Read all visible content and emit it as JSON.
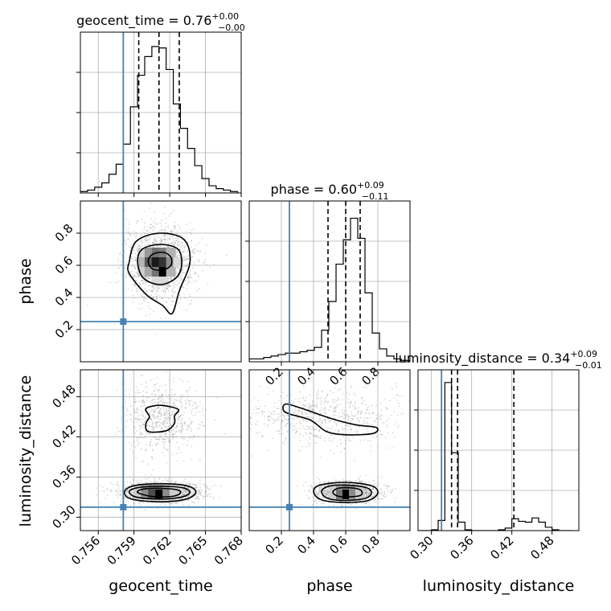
{
  "chart_data": {
    "type": "corner",
    "parameters": [
      "geocent_time",
      "phase",
      "luminosity_distance"
    ],
    "truths": {
      "geocent_time": 0.7581,
      "phase": 0.25,
      "luminosity_distance": 0.315
    },
    "panels": [
      {
        "id": "hist-geocent_time",
        "type": "histogram",
        "param": "geocent_time",
        "title": {
          "main": "geocent_time = 0.76",
          "sup": "+0.00",
          "sub": "−0.00"
        },
        "xlim": [
          0.7545,
          0.768
        ],
        "xticks": [
          0.756,
          0.759,
          0.762,
          0.765,
          0.768
        ],
        "quantiles": [
          0.7594,
          0.7611,
          0.7628
        ],
        "bin_edges": [
          0.7545,
          0.7551,
          0.7557,
          0.7563,
          0.7569,
          0.7575,
          0.7581,
          0.7587,
          0.7593,
          0.7599,
          0.7605,
          0.7611,
          0.7617,
          0.7623,
          0.7629,
          0.7635,
          0.7641,
          0.7647,
          0.7653,
          0.7659,
          0.7665,
          0.7671,
          0.7677
        ],
        "counts": [
          1,
          2,
          4,
          7,
          13,
          20,
          34,
          60,
          82,
          95,
          102,
          101,
          86,
          62,
          45,
          31,
          19,
          10,
          5,
          3,
          2,
          1
        ],
        "ymax": 112
      },
      {
        "id": "hist-phase",
        "type": "histogram",
        "param": "phase",
        "title": {
          "main": "phase = 0.60",
          "sup": "+0.09",
          "sub": "−0.11"
        },
        "xlim": [
          0.0,
          1.0
        ],
        "xticks": [
          0.2,
          0.4,
          0.6,
          0.8
        ],
        "xticklabels": [
          "0.2",
          "0.4",
          "0.6",
          "0.8"
        ],
        "quantiles": [
          0.49,
          0.6,
          0.69
        ],
        "bin_edges": [
          0.0,
          0.045,
          0.09,
          0.135,
          0.18,
          0.225,
          0.27,
          0.315,
          0.36,
          0.405,
          0.45,
          0.495,
          0.54,
          0.585,
          0.63,
          0.675,
          0.72,
          0.765,
          0.81,
          0.855,
          0.9,
          0.945,
          1.0
        ],
        "counts": [
          2,
          2,
          3,
          4,
          5,
          6,
          6,
          7,
          8,
          10,
          22,
          42,
          68,
          85,
          100,
          86,
          48,
          20,
          9,
          4,
          2,
          1
        ],
        "ymax": 112
      },
      {
        "id": "hist-luminosity_distance",
        "type": "histogram",
        "param": "luminosity_distance",
        "title": {
          "main": "luminosity_distance = 0.34",
          "sup": "+0.09",
          "sub": "−0.01"
        },
        "xlim": [
          0.28,
          0.52
        ],
        "xticks": [
          0.3,
          0.36,
          0.42,
          0.48
        ],
        "xticklabels": [
          "0.30",
          "0.36",
          "0.42",
          "0.48"
        ],
        "quantiles": [
          0.33,
          0.339,
          0.423
        ],
        "bin_edges": [
          0.28,
          0.29,
          0.3,
          0.31,
          0.32,
          0.33,
          0.34,
          0.35,
          0.36,
          0.37,
          0.38,
          0.39,
          0.4,
          0.41,
          0.42,
          0.43,
          0.44,
          0.45,
          0.46,
          0.47,
          0.48,
          0.49,
          0.5,
          0.51
        ],
        "counts": [
          0,
          0,
          1,
          12,
          175,
          92,
          10,
          1,
          0,
          0,
          0,
          0,
          1,
          3,
          14,
          11,
          10,
          15,
          10,
          4,
          1,
          0,
          0
        ],
        "ymax": 190
      },
      {
        "id": "density-geocent-phase",
        "type": "density2d",
        "x": "geocent_time",
        "y": "phase",
        "xlim": [
          0.7545,
          0.768
        ],
        "ylim": [
          0.0,
          1.0
        ],
        "yticks": [
          0.2,
          0.4,
          0.6,
          0.8
        ],
        "yticklabels": [
          "0.2",
          "0.4",
          "0.6",
          "0.8"
        ],
        "blobs": [
          {
            "cx": 0.7612,
            "cy": 0.62,
            "sx": 0.0011,
            "sy": 0.085,
            "n": 1600
          }
        ],
        "contours": [
          [
            [
              0.7586,
              0.62
            ],
            [
              0.7592,
              0.75
            ],
            [
              0.7612,
              0.8
            ],
            [
              0.7632,
              0.76
            ],
            [
              0.7637,
              0.62
            ],
            [
              0.7628,
              0.44
            ],
            [
              0.7622,
              0.3
            ],
            [
              0.7614,
              0.35
            ],
            [
              0.76,
              0.42
            ],
            [
              0.7586,
              0.55
            ]
          ],
          [
            [
              0.7593,
              0.62
            ],
            [
              0.7597,
              0.7
            ],
            [
              0.7612,
              0.73
            ],
            [
              0.7627,
              0.7
            ],
            [
              0.763,
              0.6
            ],
            [
              0.7625,
              0.52
            ],
            [
              0.7612,
              0.48
            ],
            [
              0.7598,
              0.52
            ]
          ],
          [
            [
              0.7602,
              0.63
            ],
            [
              0.7606,
              0.67
            ],
            [
              0.7615,
              0.68
            ],
            [
              0.7621,
              0.65
            ],
            [
              0.7621,
              0.6
            ],
            [
              0.7614,
              0.57
            ],
            [
              0.7605,
              0.58
            ]
          ]
        ],
        "pixels": [
          {
            "x": 0.7597,
            "y": 0.68,
            "l": 0.18
          },
          {
            "x": 0.7603,
            "y": 0.68,
            "l": 0.4
          },
          {
            "x": 0.7609,
            "y": 0.68,
            "l": 0.55
          },
          {
            "x": 0.7615,
            "y": 0.68,
            "l": 0.5
          },
          {
            "x": 0.7621,
            "y": 0.68,
            "l": 0.3
          },
          {
            "x": 0.7597,
            "y": 0.62,
            "l": 0.3
          },
          {
            "x": 0.7603,
            "y": 0.62,
            "l": 0.65
          },
          {
            "x": 0.7609,
            "y": 0.62,
            "l": 0.9
          },
          {
            "x": 0.7615,
            "y": 0.62,
            "l": 0.8
          },
          {
            "x": 0.7621,
            "y": 0.62,
            "l": 0.45
          },
          {
            "x": 0.7627,
            "y": 0.62,
            "l": 0.15
          },
          {
            "x": 0.7597,
            "y": 0.56,
            "l": 0.2
          },
          {
            "x": 0.7603,
            "y": 0.56,
            "l": 0.35
          },
          {
            "x": 0.7609,
            "y": 0.56,
            "l": 0.55
          },
          {
            "x": 0.7615,
            "y": 0.56,
            "l": 1.0
          },
          {
            "x": 0.7621,
            "y": 0.56,
            "l": 0.3
          },
          {
            "x": 0.7609,
            "y": 0.5,
            "l": 0.15
          },
          {
            "x": 0.7615,
            "y": 0.5,
            "l": 0.15
          }
        ]
      },
      {
        "id": "density-geocent-lumdist",
        "type": "density2d",
        "x": "geocent_time",
        "y": "luminosity_distance",
        "xlim": [
          0.7545,
          0.768
        ],
        "ylim": [
          0.28,
          0.52
        ],
        "xticks": [
          0.756,
          0.759,
          0.762,
          0.765,
          0.768
        ],
        "xticklabels": [
          "0.756",
          "0.759",
          "0.762",
          "0.765",
          "0.768"
        ],
        "yticks": [
          0.3,
          0.36,
          0.42,
          0.48
        ],
        "yticklabels": [
          "0.30",
          "0.36",
          "0.42",
          "0.48"
        ],
        "blobs": [
          {
            "cx": 0.7612,
            "cy": 0.337,
            "sx": 0.0013,
            "sy": 0.006,
            "n": 1400
          },
          {
            "cx": 0.7613,
            "cy": 0.449,
            "sx": 0.0012,
            "sy": 0.02,
            "n": 700
          }
        ],
        "contours": [
          [
            [
              0.7582,
              0.338
            ],
            [
              0.759,
              0.347
            ],
            [
              0.7612,
              0.35
            ],
            [
              0.7634,
              0.347
            ],
            [
              0.7642,
              0.338
            ],
            [
              0.7634,
              0.327
            ],
            [
              0.7612,
              0.323
            ],
            [
              0.7588,
              0.327
            ]
          ],
          [
            [
              0.7586,
              0.338
            ],
            [
              0.7593,
              0.344
            ],
            [
              0.7612,
              0.346
            ],
            [
              0.7631,
              0.344
            ],
            [
              0.7637,
              0.337
            ],
            [
              0.763,
              0.33
            ],
            [
              0.7612,
              0.327
            ],
            [
              0.7592,
              0.33
            ]
          ],
          [
            [
              0.7593,
              0.337
            ],
            [
              0.7598,
              0.342
            ],
            [
              0.7612,
              0.343
            ],
            [
              0.7626,
              0.341
            ],
            [
              0.7629,
              0.336
            ],
            [
              0.7622,
              0.331
            ],
            [
              0.7605,
              0.331
            ]
          ],
          [
            [
              0.76,
              0.462
            ],
            [
              0.7612,
              0.467
            ],
            [
              0.7627,
              0.461
            ],
            [
              0.7624,
              0.451
            ],
            [
              0.7624,
              0.44
            ],
            [
              0.7617,
              0.429
            ],
            [
              0.7602,
              0.428
            ],
            [
              0.76,
              0.44
            ],
            [
              0.7603,
              0.45
            ]
          ]
        ],
        "pixels": [
          {
            "x": 0.7594,
            "y": 0.341,
            "l": 0.2
          },
          {
            "x": 0.76,
            "y": 0.341,
            "l": 0.4
          },
          {
            "x": 0.7606,
            "y": 0.341,
            "l": 0.5
          },
          {
            "x": 0.7612,
            "y": 0.341,
            "l": 0.5
          },
          {
            "x": 0.7618,
            "y": 0.341,
            "l": 0.35
          },
          {
            "x": 0.7624,
            "y": 0.341,
            "l": 0.15
          },
          {
            "x": 0.7594,
            "y": 0.334,
            "l": 0.2
          },
          {
            "x": 0.76,
            "y": 0.334,
            "l": 0.45
          },
          {
            "x": 0.7606,
            "y": 0.334,
            "l": 0.7
          },
          {
            "x": 0.7612,
            "y": 0.334,
            "l": 1.0
          },
          {
            "x": 0.7618,
            "y": 0.334,
            "l": 0.45
          },
          {
            "x": 0.7624,
            "y": 0.334,
            "l": 0.2
          }
        ]
      },
      {
        "id": "density-phase-lumdist",
        "type": "density2d",
        "x": "phase",
        "y": "luminosity_distance",
        "xlim": [
          0.0,
          1.0
        ],
        "ylim": [
          0.28,
          0.52
        ],
        "xticks": [
          0.2,
          0.4,
          0.6,
          0.8
        ],
        "xticklabels": [
          "0.2",
          "0.4",
          "0.6",
          "0.8"
        ],
        "blobs": [
          {
            "cx": 0.61,
            "cy": 0.337,
            "sx": 0.075,
            "sy": 0.006,
            "n": 1400
          },
          {
            "cx": 0.45,
            "cy": 0.449,
            "sx": 0.2,
            "sy": 0.016,
            "n": 750
          }
        ],
        "contours": [
          [
            [
              0.4,
              0.338
            ],
            [
              0.44,
              0.348
            ],
            [
              0.6,
              0.352
            ],
            [
              0.76,
              0.347
            ],
            [
              0.8,
              0.336
            ],
            [
              0.74,
              0.325
            ],
            [
              0.6,
              0.322
            ],
            [
              0.45,
              0.326
            ]
          ],
          [
            [
              0.45,
              0.338
            ],
            [
              0.49,
              0.346
            ],
            [
              0.6,
              0.348
            ],
            [
              0.73,
              0.344
            ],
            [
              0.76,
              0.336
            ],
            [
              0.72,
              0.328
            ],
            [
              0.6,
              0.325
            ],
            [
              0.49,
              0.328
            ]
          ],
          [
            [
              0.52,
              0.337
            ],
            [
              0.55,
              0.343
            ],
            [
              0.62,
              0.344
            ],
            [
              0.69,
              0.341
            ],
            [
              0.7,
              0.334
            ],
            [
              0.66,
              0.331
            ],
            [
              0.56,
              0.331
            ]
          ],
          [
            [
              0.21,
              0.462
            ],
            [
              0.23,
              0.469
            ],
            [
              0.32,
              0.463
            ],
            [
              0.5,
              0.448
            ],
            [
              0.66,
              0.438
            ],
            [
              0.79,
              0.434
            ],
            [
              0.77,
              0.425
            ],
            [
              0.6,
              0.423
            ],
            [
              0.48,
              0.428
            ],
            [
              0.38,
              0.445
            ],
            [
              0.24,
              0.455
            ]
          ]
        ],
        "pixels": [
          {
            "x": 0.53,
            "y": 0.341,
            "l": 0.2
          },
          {
            "x": 0.57,
            "y": 0.341,
            "l": 0.4
          },
          {
            "x": 0.61,
            "y": 0.341,
            "l": 0.5
          },
          {
            "x": 0.65,
            "y": 0.341,
            "l": 0.4
          },
          {
            "x": 0.69,
            "y": 0.341,
            "l": 0.2
          },
          {
            "x": 0.53,
            "y": 0.334,
            "l": 0.2
          },
          {
            "x": 0.57,
            "y": 0.334,
            "l": 0.55
          },
          {
            "x": 0.61,
            "y": 0.334,
            "l": 1.0
          },
          {
            "x": 0.65,
            "y": 0.334,
            "l": 0.45
          },
          {
            "x": 0.69,
            "y": 0.334,
            "l": 0.2
          }
        ]
      }
    ],
    "axis_labels": {
      "x": [
        "geocent_time",
        "phase",
        "luminosity_distance"
      ],
      "y": [
        "phase",
        "luminosity_distance"
      ]
    },
    "colors": {
      "truth": "#4682b4",
      "hist": "#000000",
      "grid": "#b0b0b0",
      "scatter": "#7f7f7f"
    }
  }
}
